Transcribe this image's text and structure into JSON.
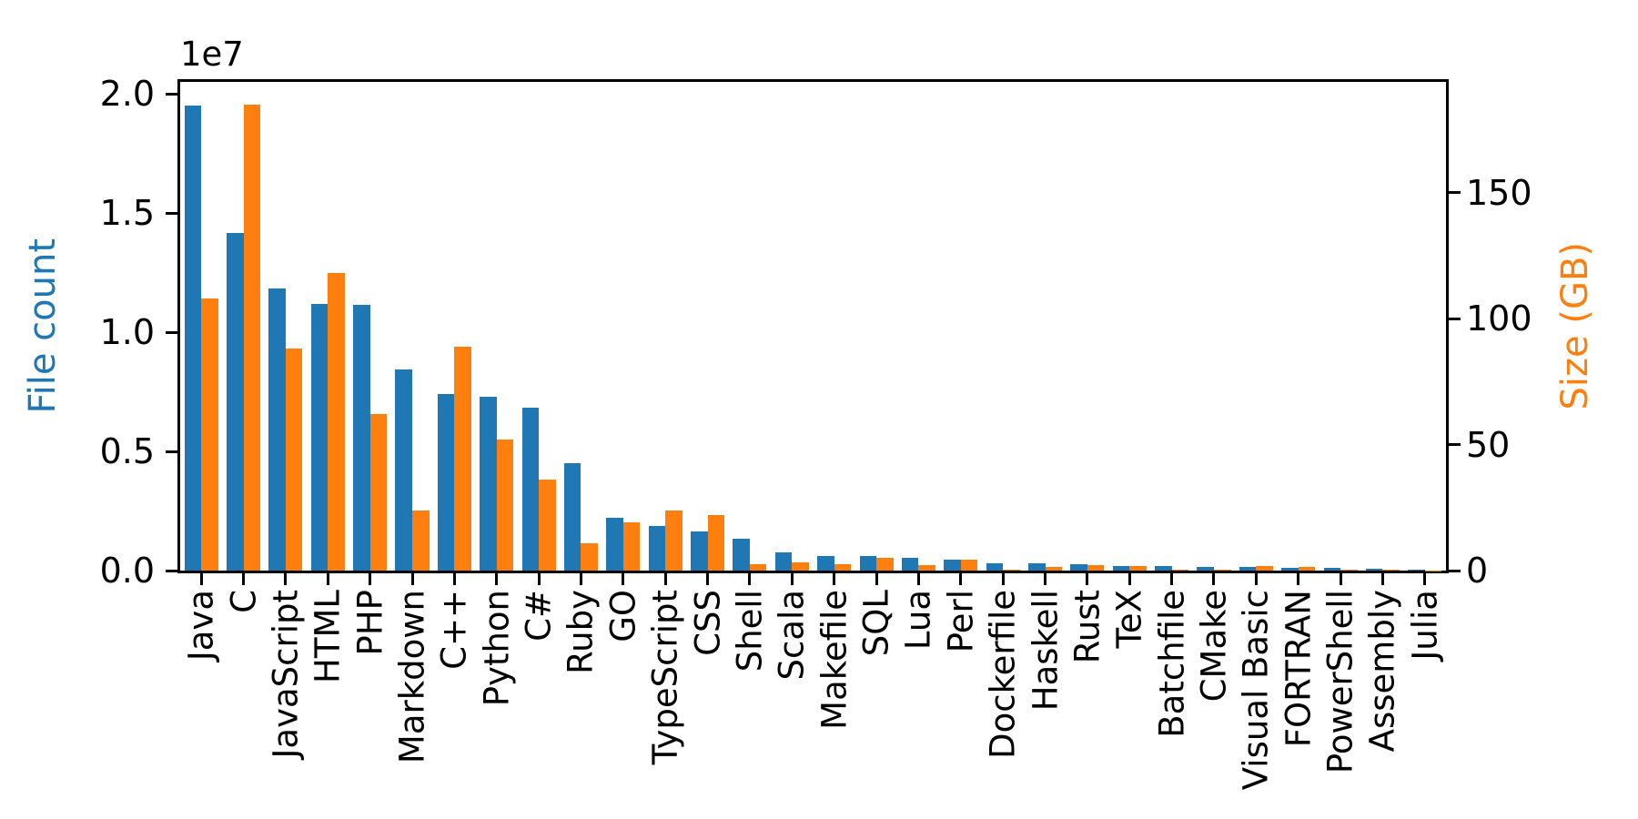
{
  "figure": {
    "offset_text": "1e7",
    "left_axis": {
      "label": "File count",
      "color": "#1f77b4",
      "tick_labels": [
        "0.0",
        "0.5",
        "1.0",
        "1.5",
        "2.0"
      ],
      "tick_values": [
        0,
        5000000,
        10000000,
        15000000,
        20000000
      ],
      "max": 20500000
    },
    "right_axis": {
      "label": "Size (GB)",
      "color": "#ff7f0e",
      "tick_labels": [
        "0",
        "50",
        "100",
        "150"
      ],
      "tick_values": [
        0,
        50,
        100,
        150
      ],
      "max": 194
    }
  },
  "chart_data": {
    "type": "bar",
    "title": "",
    "xlabel": "",
    "ylabel_left": "File count",
    "ylabel_right": "Size (GB)",
    "ylim_left": [
      0,
      20500000
    ],
    "ylim_right": [
      0,
      194
    ],
    "x_tick_rotation": 90,
    "grid": false,
    "legend": "none",
    "y_offset_factor": "1e7",
    "categories": [
      "Java",
      "C",
      "JavaScript",
      "HTML",
      "PHP",
      "Markdown",
      "C++",
      "Python",
      "C#",
      "Ruby",
      "GO",
      "TypeScript",
      "CSS",
      "Shell",
      "Scala",
      "Makefile",
      "SQL",
      "Lua",
      "Perl",
      "Dockerfile",
      "Haskell",
      "Rust",
      "TeX",
      "Batchfile",
      "CMake",
      "Visual Basic",
      "FORTRAN",
      "PowerShell",
      "Assembly",
      "Julia"
    ],
    "series": [
      {
        "name": "File count",
        "axis": "left",
        "color": "#1f77b4",
        "values": [
          19500000,
          14150000,
          11850000,
          11200000,
          11150000,
          8450000,
          7400000,
          7300000,
          6850000,
          4500000,
          2200000,
          1870000,
          1660000,
          1320000,
          760000,
          620000,
          600000,
          540000,
          450000,
          320000,
          290000,
          280000,
          210000,
          200000,
          150000,
          140000,
          110000,
          100000,
          60000,
          40000
        ]
      },
      {
        "name": "Size (GB)",
        "axis": "right",
        "color": "#ff7f0e",
        "values": [
          108,
          185,
          88,
          118,
          62,
          24,
          89,
          52,
          36,
          11,
          19,
          24,
          22,
          2.5,
          3.2,
          2.4,
          4.9,
          2.0,
          4.2,
          0.4,
          1.6,
          2.2,
          1.7,
          0.3,
          0.35,
          1.7,
          1.6,
          0.5,
          0.3,
          0.15
        ]
      }
    ]
  }
}
